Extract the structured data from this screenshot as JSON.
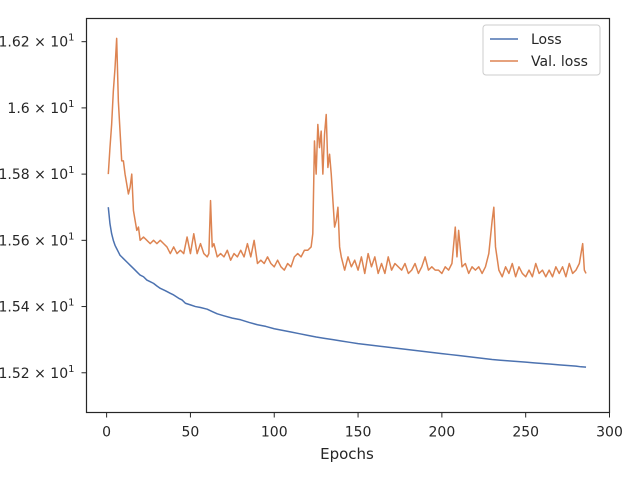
{
  "chart_data": {
    "type": "line",
    "title": "",
    "xlabel": "Epochs",
    "ylabel": "",
    "xlim": [
      -12,
      300
    ],
    "ylim": [
      15.08,
      16.27
    ],
    "x_ticks": [
      0,
      50,
      100,
      150,
      200,
      250,
      300
    ],
    "x_tick_labels": [
      "0",
      "50",
      "100",
      "150",
      "200",
      "250",
      "300"
    ],
    "y_ticks": [
      15.2,
      15.4,
      15.6,
      15.8,
      16.0,
      16.2
    ],
    "y_tick_labels": [
      {
        "mantissa": "1.52",
        "base": "10",
        "exp": "1"
      },
      {
        "mantissa": "1.54",
        "base": "10",
        "exp": "1"
      },
      {
        "mantissa": "1.56",
        "base": "10",
        "exp": "1"
      },
      {
        "mantissa": "1.58",
        "base": "10",
        "exp": "1"
      },
      {
        "mantissa": "1.6",
        "base": "10",
        "exp": "1"
      },
      {
        "mantissa": "1.62",
        "base": "10",
        "exp": "1"
      }
    ],
    "grid": false,
    "legend_position": "top-right",
    "series": [
      {
        "name": "Loss",
        "color": "#4c72b0",
        "points": [
          [
            1,
            15.7
          ],
          [
            2,
            15.65
          ],
          [
            3,
            15.62
          ],
          [
            4,
            15.6
          ],
          [
            5,
            15.585
          ],
          [
            6,
            15.575
          ],
          [
            7,
            15.565
          ],
          [
            8,
            15.555
          ],
          [
            9,
            15.55
          ],
          [
            10,
            15.545
          ],
          [
            12,
            15.535
          ],
          [
            14,
            15.525
          ],
          [
            15,
            15.52
          ],
          [
            16,
            15.515
          ],
          [
            18,
            15.505
          ],
          [
            20,
            15.495
          ],
          [
            22,
            15.49
          ],
          [
            24,
            15.48
          ],
          [
            26,
            15.475
          ],
          [
            28,
            15.47
          ],
          [
            30,
            15.462
          ],
          [
            32,
            15.455
          ],
          [
            35,
            15.448
          ],
          [
            38,
            15.44
          ],
          [
            40,
            15.435
          ],
          [
            43,
            15.425
          ],
          [
            45,
            15.42
          ],
          [
            47,
            15.41
          ],
          [
            50,
            15.405
          ],
          [
            53,
            15.4
          ],
          [
            56,
            15.397
          ],
          [
            60,
            15.392
          ],
          [
            63,
            15.385
          ],
          [
            66,
            15.378
          ],
          [
            70,
            15.372
          ],
          [
            75,
            15.365
          ],
          [
            80,
            15.36
          ],
          [
            85,
            15.352
          ],
          [
            90,
            15.345
          ],
          [
            95,
            15.34
          ],
          [
            100,
            15.333
          ],
          [
            105,
            15.328
          ],
          [
            110,
            15.323
          ],
          [
            115,
            15.318
          ],
          [
            120,
            15.313
          ],
          [
            125,
            15.308
          ],
          [
            130,
            15.304
          ],
          [
            135,
            15.3
          ],
          [
            140,
            15.296
          ],
          [
            145,
            15.292
          ],
          [
            150,
            15.288
          ],
          [
            155,
            15.285
          ],
          [
            160,
            15.282
          ],
          [
            165,
            15.279
          ],
          [
            170,
            15.276
          ],
          [
            175,
            15.273
          ],
          [
            180,
            15.27
          ],
          [
            185,
            15.267
          ],
          [
            190,
            15.264
          ],
          [
            195,
            15.261
          ],
          [
            200,
            15.258
          ],
          [
            205,
            15.255
          ],
          [
            210,
            15.252
          ],
          [
            215,
            15.249
          ],
          [
            220,
            15.246
          ],
          [
            225,
            15.243
          ],
          [
            230,
            15.24
          ],
          [
            235,
            15.238
          ],
          [
            240,
            15.236
          ],
          [
            245,
            15.234
          ],
          [
            250,
            15.232
          ],
          [
            255,
            15.23
          ],
          [
            260,
            15.228
          ],
          [
            265,
            15.226
          ],
          [
            270,
            15.224
          ],
          [
            275,
            15.222
          ],
          [
            280,
            15.22
          ],
          [
            283,
            15.218
          ],
          [
            286,
            15.217
          ]
        ]
      },
      {
        "name": "Val. loss",
        "color": "#dd8452",
        "points": [
          [
            1,
            15.8
          ],
          [
            2,
            15.88
          ],
          [
            3,
            15.95
          ],
          [
            4,
            16.05
          ],
          [
            5,
            16.12
          ],
          [
            6,
            16.21
          ],
          [
            7,
            16.02
          ],
          [
            8,
            15.93
          ],
          [
            9,
            15.84
          ],
          [
            10,
            15.84
          ],
          [
            11,
            15.8
          ],
          [
            12,
            15.77
          ],
          [
            13,
            15.74
          ],
          [
            14,
            15.76
          ],
          [
            15,
            15.8
          ],
          [
            16,
            15.69
          ],
          [
            17,
            15.66
          ],
          [
            18,
            15.63
          ],
          [
            19,
            15.64
          ],
          [
            20,
            15.6
          ],
          [
            22,
            15.61
          ],
          [
            24,
            15.6
          ],
          [
            26,
            15.59
          ],
          [
            28,
            15.6
          ],
          [
            30,
            15.59
          ],
          [
            32,
            15.6
          ],
          [
            34,
            15.59
          ],
          [
            36,
            15.58
          ],
          [
            38,
            15.56
          ],
          [
            40,
            15.58
          ],
          [
            42,
            15.56
          ],
          [
            44,
            15.57
          ],
          [
            46,
            15.56
          ],
          [
            48,
            15.61
          ],
          [
            50,
            15.56
          ],
          [
            52,
            15.62
          ],
          [
            54,
            15.56
          ],
          [
            56,
            15.59
          ],
          [
            58,
            15.56
          ],
          [
            60,
            15.55
          ],
          [
            61,
            15.56
          ],
          [
            62,
            15.72
          ],
          [
            63,
            15.58
          ],
          [
            64,
            15.59
          ],
          [
            66,
            15.55
          ],
          [
            68,
            15.56
          ],
          [
            70,
            15.55
          ],
          [
            72,
            15.57
          ],
          [
            74,
            15.54
          ],
          [
            76,
            15.56
          ],
          [
            78,
            15.55
          ],
          [
            80,
            15.57
          ],
          [
            82,
            15.55
          ],
          [
            84,
            15.59
          ],
          [
            86,
            15.55
          ],
          [
            88,
            15.6
          ],
          [
            90,
            15.53
          ],
          [
            92,
            15.54
          ],
          [
            94,
            15.53
          ],
          [
            96,
            15.55
          ],
          [
            98,
            15.53
          ],
          [
            100,
            15.52
          ],
          [
            102,
            15.54
          ],
          [
            104,
            15.52
          ],
          [
            106,
            15.51
          ],
          [
            108,
            15.53
          ],
          [
            110,
            15.52
          ],
          [
            112,
            15.55
          ],
          [
            114,
            15.56
          ],
          [
            116,
            15.55
          ],
          [
            118,
            15.57
          ],
          [
            120,
            15.57
          ],
          [
            122,
            15.58
          ],
          [
            123,
            15.62
          ],
          [
            124,
            15.9
          ],
          [
            125,
            15.8
          ],
          [
            126,
            15.95
          ],
          [
            127,
            15.88
          ],
          [
            128,
            15.93
          ],
          [
            129,
            15.8
          ],
          [
            130,
            15.92
          ],
          [
            131,
            15.98
          ],
          [
            132,
            15.82
          ],
          [
            133,
            15.86
          ],
          [
            134,
            15.8
          ],
          [
            135,
            15.72
          ],
          [
            136,
            15.64
          ],
          [
            137,
            15.66
          ],
          [
            138,
            15.7
          ],
          [
            139,
            15.58
          ],
          [
            140,
            15.55
          ],
          [
            142,
            15.51
          ],
          [
            144,
            15.55
          ],
          [
            146,
            15.52
          ],
          [
            148,
            15.54
          ],
          [
            150,
            15.51
          ],
          [
            152,
            15.55
          ],
          [
            154,
            15.5
          ],
          [
            156,
            15.56
          ],
          [
            158,
            15.52
          ],
          [
            160,
            15.55
          ],
          [
            162,
            15.5
          ],
          [
            164,
            15.53
          ],
          [
            166,
            15.5
          ],
          [
            168,
            15.55
          ],
          [
            170,
            15.51
          ],
          [
            172,
            15.53
          ],
          [
            174,
            15.52
          ],
          [
            176,
            15.51
          ],
          [
            178,
            15.53
          ],
          [
            180,
            15.5
          ],
          [
            182,
            15.51
          ],
          [
            184,
            15.53
          ],
          [
            186,
            15.5
          ],
          [
            188,
            15.52
          ],
          [
            190,
            15.55
          ],
          [
            192,
            15.51
          ],
          [
            194,
            15.52
          ],
          [
            196,
            15.51
          ],
          [
            198,
            15.51
          ],
          [
            200,
            15.5
          ],
          [
            202,
            15.52
          ],
          [
            204,
            15.51
          ],
          [
            206,
            15.53
          ],
          [
            208,
            15.64
          ],
          [
            209,
            15.55
          ],
          [
            210,
            15.63
          ],
          [
            212,
            15.52
          ],
          [
            214,
            15.53
          ],
          [
            216,
            15.5
          ],
          [
            218,
            15.52
          ],
          [
            220,
            15.51
          ],
          [
            222,
            15.52
          ],
          [
            224,
            15.5
          ],
          [
            226,
            15.52
          ],
          [
            228,
            15.56
          ],
          [
            230,
            15.66
          ],
          [
            231,
            15.7
          ],
          [
            232,
            15.58
          ],
          [
            234,
            15.51
          ],
          [
            236,
            15.49
          ],
          [
            238,
            15.52
          ],
          [
            240,
            15.5
          ],
          [
            242,
            15.53
          ],
          [
            244,
            15.49
          ],
          [
            246,
            15.52
          ],
          [
            248,
            15.5
          ],
          [
            250,
            15.49
          ],
          [
            252,
            15.51
          ],
          [
            254,
            15.49
          ],
          [
            256,
            15.53
          ],
          [
            258,
            15.5
          ],
          [
            260,
            15.51
          ],
          [
            262,
            15.49
          ],
          [
            264,
            15.51
          ],
          [
            266,
            15.49
          ],
          [
            268,
            15.52
          ],
          [
            270,
            15.5
          ],
          [
            272,
            15.52
          ],
          [
            274,
            15.49
          ],
          [
            276,
            15.53
          ],
          [
            278,
            15.5
          ],
          [
            280,
            15.51
          ],
          [
            282,
            15.53
          ],
          [
            284,
            15.59
          ],
          [
            285,
            15.51
          ],
          [
            286,
            15.5
          ]
        ]
      }
    ]
  }
}
